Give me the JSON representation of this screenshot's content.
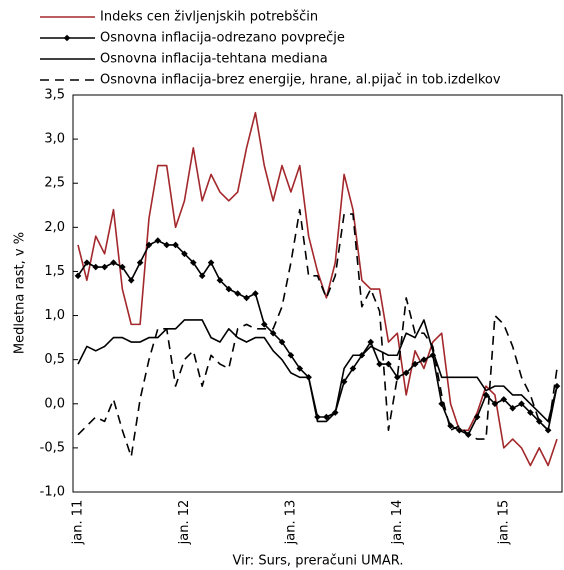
{
  "chart_data": {
    "type": "line",
    "y_axis_label": "Medletna rast, v %",
    "source": "Vir: Surs, preračuni UMAR.",
    "categories": [
      "jan. 11",
      null,
      null,
      null,
      null,
      null,
      null,
      null,
      null,
      null,
      null,
      null,
      "jan. 12",
      null,
      null,
      null,
      null,
      null,
      null,
      null,
      null,
      null,
      null,
      null,
      "jan. 13",
      null,
      null,
      null,
      null,
      null,
      null,
      null,
      null,
      null,
      null,
      null,
      "jan. 14",
      null,
      null,
      null,
      null,
      null,
      null,
      null,
      null,
      null,
      null,
      null,
      "jan. 15",
      null,
      null,
      null,
      null,
      null,
      null
    ],
    "series": [
      {
        "name": "Indeks cen življenjskih potrebščin",
        "color": "#a3282b",
        "values": [
          1.8,
          1.4,
          1.9,
          1.7,
          2.2,
          1.3,
          0.9,
          0.9,
          2.1,
          2.7,
          2.7,
          2.0,
          2.3,
          2.9,
          2.3,
          2.6,
          2.4,
          2.3,
          2.4,
          2.9,
          3.3,
          2.7,
          2.3,
          2.7,
          2.4,
          2.7,
          1.9,
          1.5,
          1.2,
          1.6,
          2.6,
          2.2,
          1.4,
          1.3,
          1.3,
          0.7,
          0.8,
          0.1,
          0.6,
          0.4,
          0.7,
          0.8,
          0.0,
          -0.3,
          -0.3,
          -0.1,
          0.2,
          0.1,
          -0.5,
          -0.4,
          -0.5,
          -0.7,
          -0.5,
          -0.7,
          -0.4
        ]
      },
      {
        "name": "Osnovna inflacija-odrezano povprečje",
        "color": "#000000",
        "marker": "diamond",
        "values": [
          1.45,
          1.6,
          1.55,
          1.55,
          1.6,
          1.55,
          1.4,
          1.6,
          1.8,
          1.85,
          1.8,
          1.8,
          1.7,
          1.6,
          1.45,
          1.6,
          1.4,
          1.3,
          1.25,
          1.2,
          1.25,
          0.9,
          0.8,
          0.7,
          0.55,
          0.4,
          0.3,
          -0.15,
          -0.15,
          -0.1,
          0.25,
          0.4,
          0.55,
          0.7,
          0.45,
          0.45,
          0.3,
          0.35,
          0.45,
          0.5,
          0.55,
          0.0,
          -0.25,
          -0.3,
          -0.35,
          -0.15,
          0.1,
          0.0,
          0.05,
          -0.05,
          0.0,
          -0.1,
          -0.2,
          -0.3,
          0.2
        ]
      },
      {
        "name": "Osnovna inflacija-tehtana mediana",
        "color": "#000000",
        "values": [
          0.45,
          0.65,
          0.6,
          0.65,
          0.75,
          0.75,
          0.7,
          0.7,
          0.75,
          0.75,
          0.85,
          0.85,
          0.95,
          0.95,
          0.95,
          0.75,
          0.7,
          0.85,
          0.75,
          0.7,
          0.75,
          0.75,
          0.6,
          0.5,
          0.35,
          0.3,
          0.3,
          -0.2,
          -0.2,
          -0.1,
          0.4,
          0.55,
          0.55,
          0.65,
          0.6,
          0.55,
          0.55,
          0.8,
          0.75,
          0.95,
          0.6,
          0.3,
          0.3,
          0.3,
          0.3,
          0.3,
          0.15,
          0.2,
          0.2,
          0.1,
          0.1,
          0.0,
          -0.1,
          -0.2,
          0.2
        ]
      },
      {
        "name": "Osnovna inflacija-brez energije, hrane, al.pijač in tob.izdelkov",
        "color": "#000000",
        "dash": "9,6",
        "values": [
          -0.35,
          -0.25,
          -0.15,
          -0.2,
          0.05,
          -0.3,
          -0.6,
          0.05,
          0.5,
          0.85,
          0.85,
          0.2,
          0.5,
          0.6,
          0.2,
          0.55,
          0.45,
          0.4,
          0.85,
          0.9,
          0.85,
          0.85,
          0.85,
          1.1,
          1.6,
          2.2,
          1.45,
          1.45,
          1.2,
          1.45,
          2.15,
          2.15,
          1.1,
          1.3,
          1.05,
          -0.3,
          0.3,
          1.2,
          0.8,
          0.8,
          0.65,
          0.1,
          -0.3,
          -0.25,
          -0.35,
          -0.4,
          -0.4,
          1.0,
          0.9,
          0.65,
          0.3,
          0.1,
          -0.2,
          -0.3,
          0.4
        ]
      }
    ],
    "ylim": [
      -1.0,
      3.5
    ],
    "yticks": [
      {
        "value": -1.0,
        "label": "-1,0"
      },
      {
        "value": -0.5,
        "label": "-0,5"
      },
      {
        "value": 0.0,
        "label": "0,0"
      },
      {
        "value": 0.5,
        "label": "0,5"
      },
      {
        "value": 1.0,
        "label": "1,0"
      },
      {
        "value": 1.5,
        "label": "1,5"
      },
      {
        "value": 2.0,
        "label": "2,0"
      },
      {
        "value": 2.5,
        "label": "2,5"
      },
      {
        "value": 3.0,
        "label": "3,0"
      },
      {
        "value": 3.5,
        "label": "3,5"
      }
    ],
    "grid": false
  }
}
